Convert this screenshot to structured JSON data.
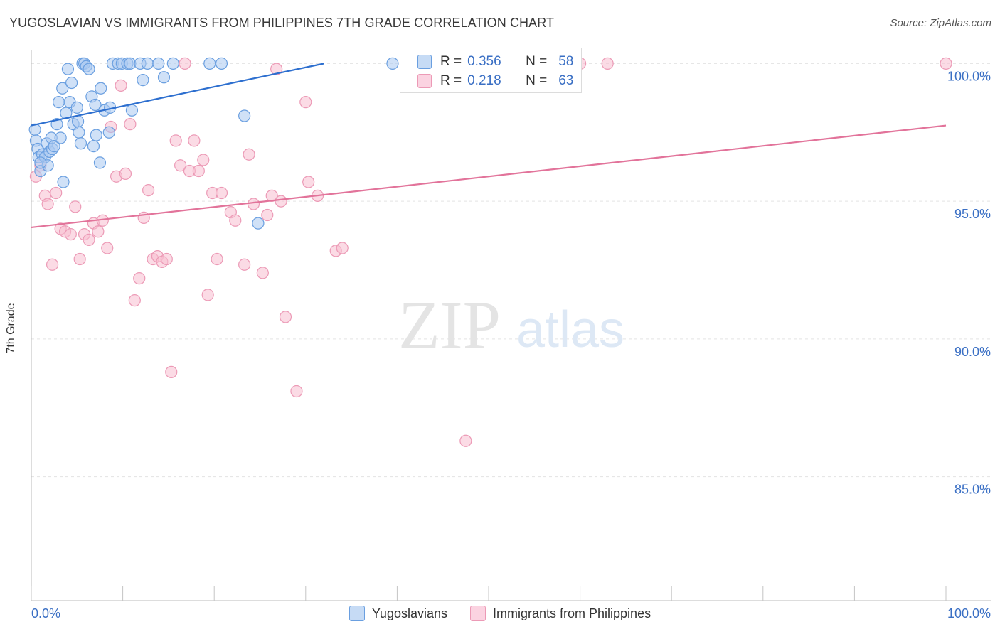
{
  "title": "YUGOSLAVIAN VS IMMIGRANTS FROM PHILIPPINES 7TH GRADE CORRELATION CHART",
  "source": "Source: ZipAtlas.com",
  "watermark": {
    "zip": "ZIP",
    "atlas": "atlas"
  },
  "legend": {
    "series": [
      {
        "r_label": "R =",
        "r_value": "0.356",
        "n_label": "N =",
        "n_value": "58"
      },
      {
        "r_label": "R =",
        "r_value": "0.218",
        "n_label": "N =",
        "n_value": "63"
      }
    ]
  },
  "colors": {
    "blue_fill": "#a9c8f0",
    "blue_stroke": "#6a9fe0",
    "blue_line": "#2d6fcf",
    "pink_fill": "#f7bdd0",
    "pink_stroke": "#ec9ab6",
    "pink_line": "#e2739a",
    "axis_text": "#3a6fc4",
    "grid": "#e3e3e3"
  },
  "chart_data": {
    "type": "scatter",
    "title": "YUGOSLAVIAN VS IMMIGRANTS FROM PHILIPPINES 7TH GRADE CORRELATION CHART",
    "xlabel": "",
    "ylabel": "7th Grade",
    "xlim": [
      0,
      100
    ],
    "ylim": [
      80.5,
      100.5
    ],
    "x_tick_labels": [
      "0.0%",
      "100.0%"
    ],
    "y_ticks": [
      85,
      90,
      95,
      100
    ],
    "y_tick_labels": [
      "85.0%",
      "90.0%",
      "95.0%",
      "100.0%"
    ],
    "grid": true,
    "legend_position": "bottom",
    "series": [
      {
        "name": "Yugoslavians",
        "color": "#a9c8f0",
        "trend": {
          "x": [
            0,
            32
          ],
          "y": [
            97.75,
            100.0
          ]
        },
        "points": [
          [
            0.4,
            97.6
          ],
          [
            0.5,
            97.2
          ],
          [
            0.7,
            96.9
          ],
          [
            0.8,
            96.6
          ],
          [
            1.0,
            96.1
          ],
          [
            1.2,
            96.7
          ],
          [
            1.5,
            96.6
          ],
          [
            1.7,
            97.1
          ],
          [
            1.8,
            96.3
          ],
          [
            2.0,
            96.8
          ],
          [
            2.2,
            97.3
          ],
          [
            2.3,
            96.9
          ],
          [
            2.5,
            97.0
          ],
          [
            2.8,
            97.8
          ],
          [
            3.0,
            98.6
          ],
          [
            3.2,
            97.3
          ],
          [
            3.4,
            99.1
          ],
          [
            3.5,
            95.7
          ],
          [
            3.8,
            98.2
          ],
          [
            4.0,
            99.8
          ],
          [
            4.2,
            98.6
          ],
          [
            4.4,
            99.3
          ],
          [
            4.6,
            97.8
          ],
          [
            5.0,
            98.4
          ],
          [
            5.1,
            97.9
          ],
          [
            5.2,
            97.5
          ],
          [
            5.4,
            97.1
          ],
          [
            5.6,
            100.0
          ],
          [
            5.8,
            100.0
          ],
          [
            6.0,
            99.9
          ],
          [
            6.3,
            99.8
          ],
          [
            6.6,
            98.8
          ],
          [
            6.8,
            97.0
          ],
          [
            7.0,
            98.5
          ],
          [
            7.1,
            97.4
          ],
          [
            7.5,
            96.4
          ],
          [
            7.6,
            99.1
          ],
          [
            8.0,
            98.3
          ],
          [
            8.6,
            98.4
          ],
          [
            8.5,
            97.5
          ],
          [
            8.9,
            100.0
          ],
          [
            9.5,
            100.0
          ],
          [
            9.9,
            100.0
          ],
          [
            10.5,
            100.0
          ],
          [
            10.8,
            100.0
          ],
          [
            11.0,
            98.3
          ],
          [
            11.9,
            100.0
          ],
          [
            12.2,
            99.4
          ],
          [
            12.7,
            100.0
          ],
          [
            13.9,
            100.0
          ],
          [
            14.5,
            99.5
          ],
          [
            15.5,
            100.0
          ],
          [
            19.5,
            100.0
          ],
          [
            20.8,
            100.0
          ],
          [
            23.3,
            98.1
          ],
          [
            24.8,
            94.2
          ],
          [
            39.5,
            100.0
          ],
          [
            1.0,
            96.4
          ]
        ]
      },
      {
        "name": "Immigrants from Philippines",
        "color": "#f7bdd0",
        "trend": {
          "x": [
            0,
            100
          ],
          "y": [
            94.05,
            97.75
          ]
        },
        "points": [
          [
            0.5,
            95.9
          ],
          [
            1.0,
            96.3
          ],
          [
            1.5,
            95.2
          ],
          [
            1.8,
            94.9
          ],
          [
            2.3,
            92.7
          ],
          [
            2.7,
            95.3
          ],
          [
            3.2,
            94.0
          ],
          [
            3.7,
            93.9
          ],
          [
            4.3,
            93.8
          ],
          [
            4.8,
            94.8
          ],
          [
            5.3,
            92.9
          ],
          [
            5.8,
            93.8
          ],
          [
            6.3,
            93.6
          ],
          [
            6.8,
            94.2
          ],
          [
            7.3,
            93.9
          ],
          [
            7.8,
            94.3
          ],
          [
            8.3,
            93.3
          ],
          [
            8.7,
            97.7
          ],
          [
            9.3,
            95.9
          ],
          [
            9.8,
            99.2
          ],
          [
            10.3,
            96.0
          ],
          [
            10.8,
            97.8
          ],
          [
            11.3,
            91.4
          ],
          [
            11.8,
            92.2
          ],
          [
            12.3,
            94.4
          ],
          [
            12.8,
            95.4
          ],
          [
            13.3,
            92.9
          ],
          [
            13.8,
            93.0
          ],
          [
            14.3,
            92.8
          ],
          [
            14.8,
            92.9
          ],
          [
            15.3,
            88.8
          ],
          [
            15.8,
            97.2
          ],
          [
            16.3,
            96.3
          ],
          [
            16.8,
            100.0
          ],
          [
            17.3,
            96.1
          ],
          [
            17.8,
            97.2
          ],
          [
            18.3,
            96.1
          ],
          [
            18.8,
            96.5
          ],
          [
            19.3,
            91.6
          ],
          [
            19.8,
            95.3
          ],
          [
            20.3,
            92.9
          ],
          [
            20.8,
            95.3
          ],
          [
            21.8,
            94.6
          ],
          [
            22.3,
            94.3
          ],
          [
            23.3,
            92.7
          ],
          [
            23.8,
            96.7
          ],
          [
            24.3,
            94.9
          ],
          [
            25.3,
            92.4
          ],
          [
            25.8,
            94.5
          ],
          [
            26.3,
            95.2
          ],
          [
            26.8,
            99.8
          ],
          [
            27.3,
            95.0
          ],
          [
            27.8,
            90.8
          ],
          [
            29.0,
            88.1
          ],
          [
            30.0,
            98.6
          ],
          [
            30.3,
            95.7
          ],
          [
            31.3,
            95.2
          ],
          [
            33.3,
            93.2
          ],
          [
            34.0,
            93.3
          ],
          [
            47.5,
            86.3
          ],
          [
            60.0,
            100.0
          ],
          [
            63.0,
            100.0
          ],
          [
            100.0,
            100.0
          ]
        ]
      }
    ]
  }
}
